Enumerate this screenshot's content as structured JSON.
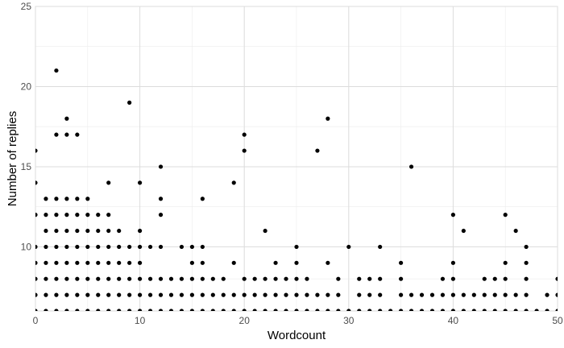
{
  "chart_data": {
    "type": "scatter",
    "x_label": "Wordcount",
    "y_label": "Number of replies",
    "color": "#000000",
    "grid": true,
    "minor_grid": true,
    "xlim": [
      0,
      50
    ],
    "ylim": [
      6,
      25
    ],
    "xticks": [
      0,
      10,
      20,
      30,
      40,
      50
    ],
    "yticks": [
      10,
      15,
      20,
      25
    ],
    "x": [
      0,
      0,
      0,
      0,
      0,
      0,
      0,
      0,
      1,
      1,
      1,
      1,
      1,
      1,
      1,
      1,
      2,
      2,
      2,
      2,
      2,
      2,
      2,
      2,
      2,
      2,
      3,
      3,
      3,
      3,
      3,
      3,
      3,
      3,
      3,
      3,
      4,
      4,
      4,
      4,
      4,
      4,
      4,
      4,
      4,
      5,
      5,
      5,
      5,
      5,
      5,
      5,
      5,
      6,
      6,
      6,
      6,
      6,
      6,
      6,
      7,
      7,
      7,
      7,
      7,
      7,
      7,
      7,
      8,
      8,
      8,
      8,
      8,
      8,
      9,
      9,
      9,
      9,
      9,
      9,
      10,
      10,
      10,
      10,
      10,
      10,
      10,
      11,
      11,
      11,
      11,
      12,
      12,
      12,
      12,
      12,
      12,
      12,
      13,
      13,
      13,
      14,
      14,
      14,
      14,
      15,
      15,
      15,
      15,
      15,
      16,
      16,
      16,
      16,
      16,
      16,
      17,
      17,
      17,
      18,
      18,
      18,
      19,
      19,
      19,
      19,
      20,
      20,
      20,
      20,
      20,
      21,
      21,
      21,
      22,
      22,
      22,
      22,
      23,
      23,
      23,
      23,
      24,
      24,
      24,
      25,
      25,
      25,
      25,
      25,
      26,
      26,
      26,
      27,
      27,
      27,
      28,
      28,
      28,
      28,
      29,
      29,
      29,
      30,
      30,
      31,
      31,
      31,
      32,
      32,
      32,
      33,
      33,
      33,
      33,
      34,
      35,
      35,
      35,
      35,
      36,
      36,
      36,
      37,
      37,
      38,
      38,
      39,
      39,
      39,
      40,
      40,
      40,
      40,
      40,
      41,
      41,
      41,
      42,
      42,
      43,
      43,
      43,
      44,
      44,
      44,
      45,
      45,
      45,
      45,
      45,
      46,
      46,
      46,
      47,
      47,
      47,
      47,
      47,
      48,
      49,
      49,
      50,
      50,
      50
    ],
    "values": [
      6,
      7,
      8,
      9,
      10,
      12,
      14,
      16,
      6,
      7,
      8,
      9,
      10,
      11,
      12,
      13,
      6,
      7,
      8,
      9,
      10,
      11,
      12,
      13,
      17,
      21,
      6,
      7,
      8,
      9,
      10,
      11,
      12,
      13,
      17,
      18,
      6,
      7,
      8,
      9,
      10,
      11,
      12,
      13,
      17,
      6,
      7,
      8,
      9,
      10,
      11,
      12,
      13,
      6,
      7,
      8,
      9,
      10,
      11,
      12,
      6,
      7,
      8,
      9,
      10,
      11,
      12,
      14,
      6,
      7,
      8,
      9,
      10,
      11,
      6,
      7,
      8,
      9,
      10,
      19,
      6,
      7,
      8,
      9,
      10,
      11,
      14,
      6,
      7,
      8,
      10,
      6,
      7,
      8,
      10,
      12,
      13,
      15,
      6,
      7,
      8,
      6,
      7,
      8,
      10,
      6,
      7,
      8,
      9,
      10,
      6,
      7,
      8,
      9,
      10,
      13,
      6,
      7,
      8,
      6,
      7,
      8,
      6,
      7,
      9,
      14,
      6,
      7,
      8,
      16,
      17,
      6,
      7,
      8,
      6,
      7,
      8,
      11,
      6,
      7,
      8,
      9,
      6,
      7,
      8,
      6,
      7,
      8,
      9,
      10,
      6,
      7,
      8,
      6,
      7,
      16,
      6,
      7,
      9,
      18,
      6,
      7,
      8,
      6,
      10,
      6,
      7,
      8,
      6,
      7,
      8,
      6,
      7,
      8,
      10,
      6,
      6,
      7,
      8,
      9,
      6,
      7,
      15,
      6,
      7,
      6,
      7,
      6,
      7,
      8,
      6,
      7,
      8,
      9,
      12,
      6,
      7,
      11,
      6,
      7,
      6,
      7,
      8,
      6,
      7,
      8,
      6,
      7,
      8,
      9,
      12,
      6,
      7,
      11,
      6,
      7,
      8,
      9,
      10,
      6,
      6,
      7,
      6,
      7,
      8
    ]
  }
}
